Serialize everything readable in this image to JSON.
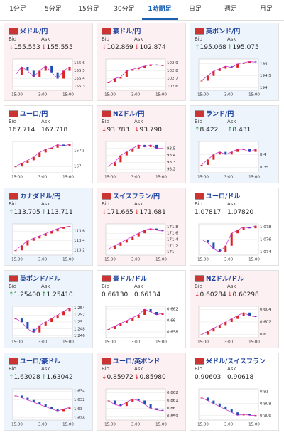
{
  "tabs": [
    {
      "label": "1分足",
      "active": false
    },
    {
      "label": "5分足",
      "active": false
    },
    {
      "label": "15分足",
      "active": false
    },
    {
      "label": "30分足",
      "active": false
    },
    {
      "label": "1時間足",
      "active": true
    },
    {
      "label": "日足",
      "active": false
    },
    {
      "label": "週足",
      "active": false
    },
    {
      "label": "月足",
      "active": false
    }
  ],
  "labels": {
    "bid": "Bid",
    "ask": "Ask"
  },
  "tiles": [
    {
      "pair": "米ドル/円",
      "trend": "down",
      "arrow": "↓",
      "bid": "155.553",
      "ask": "155.555",
      "chart": {
        "ylim": [
          155.25,
          155.65
        ],
        "yticks": [
          155.6,
          155.5,
          155.4,
          155.3
        ],
        "xticks": [
          "15:00",
          "3:00",
          "15:00"
        ],
        "closes": [
          155.45,
          155.55,
          155.5,
          155.42,
          155.5,
          155.56,
          155.48,
          155.4,
          155.5,
          155.55
        ]
      }
    },
    {
      "pair": "豪ドル/円",
      "trend": "down",
      "arrow": "↓",
      "bid": "102.869",
      "ask": "102.874",
      "chart": {
        "ylim": [
          102.55,
          102.95
        ],
        "yticks": [
          102.9,
          102.8,
          102.7,
          102.6
        ],
        "xticks": [
          "15:00",
          "3:00",
          "15:00"
        ],
        "closes": [
          102.65,
          102.7,
          102.72,
          102.8,
          102.82,
          102.84,
          102.86,
          102.88,
          102.87,
          102.87
        ]
      }
    },
    {
      "pair": "英ポンド/円",
      "trend": "up",
      "arrow": "↑",
      "bid": "195.068",
      "ask": "195.075",
      "chart": {
        "ylim": [
          193.9,
          195.2
        ],
        "yticks": [
          195,
          194.5,
          194
        ],
        "xticks": [
          "15:00",
          "3:00",
          "15:00"
        ],
        "closes": [
          194.3,
          194.5,
          194.7,
          194.8,
          194.9,
          194.85,
          195,
          195.05,
          195.1,
          195.07
        ]
      }
    },
    {
      "pair": "ユーロ/円",
      "trend": "none",
      "arrow": "",
      "bid": "167.714",
      "ask": "167.718",
      "chart": {
        "ylim": [
          166.8,
          167.8
        ],
        "yticks": [
          167.5,
          167
        ],
        "xticks": [
          "15:00",
          "3:00",
          "15:00"
        ],
        "closes": [
          167,
          167.1,
          167.2,
          167.3,
          167.45,
          167.55,
          167.6,
          167.7,
          167.65,
          167.71
        ]
      }
    },
    {
      "pair": "NZドル/円",
      "trend": "down",
      "arrow": "↓",
      "bid": "93.783",
      "ask": "93.790",
      "chart": {
        "ylim": [
          93.15,
          93.6
        ],
        "yticks": [
          93.5,
          93.4,
          93.3,
          93.2
        ],
        "xticks": [
          "15:00",
          "3:00",
          "15:00"
        ],
        "closes": [
          93.25,
          93.3,
          93.4,
          93.45,
          93.5,
          93.55,
          93.52,
          93.55,
          93.5,
          93.5
        ]
      }
    },
    {
      "pair": "ランド/円",
      "trend": "up",
      "arrow": "↑",
      "bid": "8.422",
      "ask": "8.431",
      "chart": {
        "ylim": [
          8.33,
          8.45
        ],
        "yticks": [
          8.4,
          8.35
        ],
        "xticks": [
          "15:00",
          "3:00",
          "15:00"
        ],
        "closes": [
          8.36,
          8.38,
          8.4,
          8.41,
          8.4,
          8.41,
          8.42,
          8.42,
          8.41,
          8.42
        ]
      }
    },
    {
      "pair": "カナダドル/円",
      "trend": "up",
      "arrow": "↑",
      "bid": "113.705",
      "ask": "113.711",
      "chart": {
        "ylim": [
          113.1,
          113.75
        ],
        "yticks": [
          113.6,
          113.4,
          113.2
        ],
        "xticks": [
          "15:00",
          "3:00",
          "15:00"
        ],
        "closes": [
          113.2,
          113.3,
          113.4,
          113.45,
          113.5,
          113.55,
          113.6,
          113.65,
          113.68,
          113.7
        ]
      }
    },
    {
      "pair": "スイスフラン/円",
      "trend": "down",
      "arrow": "↓",
      "bid": "171.665",
      "ask": "171.681",
      "chart": {
        "ylim": [
          170.9,
          171.9
        ],
        "yticks": [
          171.8,
          171.6,
          171.4,
          171.2,
          171
        ],
        "xticks": [
          "15:00",
          "3:00",
          "15:00"
        ],
        "closes": [
          171.1,
          171.2,
          171.3,
          171.4,
          171.5,
          171.6,
          171.7,
          171.75,
          171.7,
          171.67
        ]
      }
    },
    {
      "pair": "ユーロ/ドル",
      "trend": "none",
      "arrow": "",
      "bid": "1.07817",
      "ask": "1.07820",
      "chart": {
        "ylim": [
          1.0735,
          1.0785
        ],
        "yticks": [
          1.078,
          1.076,
          1.074
        ],
        "xticks": [
          "15:00",
          "3:00",
          "15:00"
        ],
        "closes": [
          1.076,
          1.0755,
          1.0745,
          1.074,
          1.075,
          1.077,
          1.0775,
          1.078,
          1.0778,
          1.0782
        ]
      }
    },
    {
      "pair": "英ポンド/ドル",
      "trend": "up",
      "arrow": "↑",
      "bid": "1.25400",
      "ask": "1.25410",
      "chart": {
        "ylim": [
          1.2455,
          1.2545
        ],
        "yticks": [
          1.254,
          1.252,
          1.25,
          1.248,
          1.246
        ],
        "xticks": [
          "15:00",
          "3:00",
          "15:00"
        ],
        "closes": [
          1.251,
          1.25,
          1.248,
          1.247,
          1.249,
          1.25,
          1.251,
          1.252,
          1.253,
          1.254
        ]
      }
    },
    {
      "pair": "豪ドル/ドル",
      "trend": "none",
      "arrow": "",
      "bid": "0.66130",
      "ask": "0.66134",
      "chart": {
        "ylim": [
          0.657,
          0.6625
        ],
        "yticks": [
          0.662,
          0.66,
          0.658
        ],
        "xticks": [
          "15:00",
          "3:00",
          "15:00"
        ],
        "closes": [
          0.6585,
          0.659,
          0.6595,
          0.66,
          0.6605,
          0.661,
          0.662,
          0.6615,
          0.661,
          0.6613
        ]
      }
    },
    {
      "pair": "NZドル/ドル",
      "trend": "down",
      "arrow": "↓",
      "bid": "0.60284",
      "ask": "0.60298",
      "chart": {
        "ylim": [
          0.5995,
          0.6045
        ],
        "yticks": [
          0.604,
          0.602,
          0.6
        ],
        "xticks": [
          "15:00",
          "3:00",
          "15:00"
        ],
        "closes": [
          0.6,
          0.6005,
          0.601,
          0.6015,
          0.602,
          0.6025,
          0.603,
          0.6035,
          0.603,
          0.6028
        ]
      }
    },
    {
      "pair": "ユーロ/豪ドル",
      "trend": "up",
      "arrow": "↑",
      "bid": "1.63028",
      "ask": "1.63042",
      "chart": {
        "ylim": [
          1.6275,
          1.6345
        ],
        "yticks": [
          1.634,
          1.632,
          1.63,
          1.628
        ],
        "xticks": [
          "15:00",
          "3:00",
          "15:00"
        ],
        "closes": [
          1.633,
          1.6325,
          1.632,
          1.6315,
          1.631,
          1.6305,
          1.63,
          1.6295,
          1.63,
          1.6303
        ]
      }
    },
    {
      "pair": "ユーロ/英ポンド",
      "trend": "down",
      "arrow": "↓",
      "bid": "0.85972",
      "ask": "0.85980",
      "chart": {
        "ylim": [
          0.8585,
          0.8625
        ],
        "yticks": [
          0.862,
          0.861,
          0.86,
          0.859
        ],
        "xticks": [
          "15:00",
          "3:00",
          "15:00"
        ],
        "closes": [
          0.861,
          0.8605,
          0.8603,
          0.8608,
          0.8612,
          0.861,
          0.8605,
          0.86,
          0.8598,
          0.8597
        ]
      }
    },
    {
      "pair": "米ドル/スイスフラン",
      "trend": "none",
      "arrow": "",
      "bid": "0.90603",
      "ask": "0.90618",
      "chart": {
        "ylim": [
          0.9052,
          0.9105
        ],
        "yticks": [
          0.91,
          0.908,
          0.906
        ],
        "xticks": [
          "15:00",
          "3:00",
          "15:00"
        ],
        "closes": [
          0.909,
          0.9085,
          0.908,
          0.9075,
          0.907,
          0.9065,
          0.906,
          0.9062,
          0.906,
          0.906
        ]
      }
    }
  ]
}
